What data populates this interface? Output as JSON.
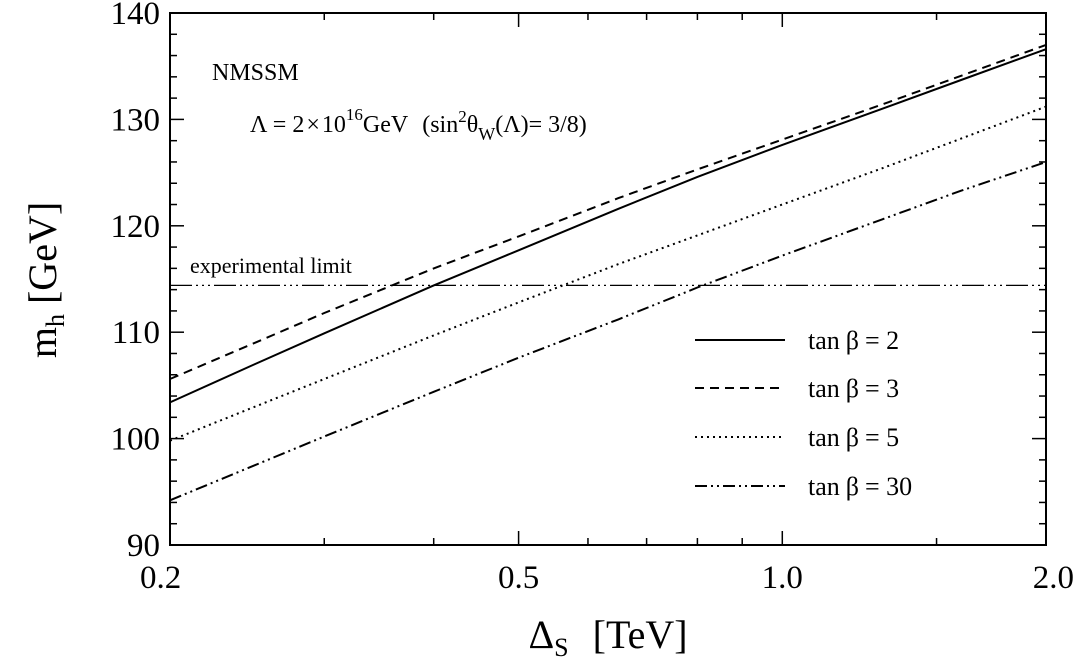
{
  "chart_data": {
    "type": "line",
    "xscale": "log",
    "xlim": [
      0.2,
      2.0
    ],
    "ylim": [
      90,
      140
    ],
    "xticks": [
      {
        "value": 0.2,
        "label": "0.2"
      },
      {
        "value": 0.5,
        "label": "0.5"
      },
      {
        "value": 1.0,
        "label": "1.0"
      },
      {
        "value": 2.0,
        "label": "2.0"
      }
    ],
    "yticks": [
      {
        "value": 90,
        "label": "90"
      },
      {
        "value": 100,
        "label": "100"
      },
      {
        "value": 110,
        "label": "110"
      },
      {
        "value": 120,
        "label": "120"
      },
      {
        "value": 130,
        "label": "130"
      },
      {
        "value": 140,
        "label": "140"
      }
    ],
    "xlabel": {
      "main": "Δ",
      "sub": "S",
      "unit": "[TeV]"
    },
    "ylabel": {
      "main": "m",
      "sub": "h",
      "unit": "[GeV]"
    },
    "annotations": {
      "model": "NMSSM",
      "cutoff": {
        "lambda": "Λ = 2",
        "times": "×",
        "ten": "10",
        "exponent": "16",
        "unit": "GeV",
        "paren_open": "(sin",
        "sq": "2",
        "theta": "θ",
        "theta_sub": "W",
        "paren_close": "(Λ)= 3/8)"
      }
    },
    "reference_line": {
      "y": 114.4,
      "label": "experimental limit",
      "style": "dash-dot-dot"
    },
    "legend_position": "right",
    "series": [
      {
        "name": "tan β = 2",
        "prefix": "tan",
        "symbol": "β",
        "value_text": "= 2",
        "style": "solid",
        "x": [
          0.2,
          0.25,
          0.3,
          0.4,
          0.5,
          0.65,
          0.8,
          1.0,
          1.3,
          1.6,
          2.0
        ],
        "y": [
          103.4,
          107.0,
          109.9,
          114.4,
          117.7,
          121.6,
          124.6,
          127.6,
          131.0,
          133.7,
          136.6
        ]
      },
      {
        "name": "tan β = 3",
        "prefix": "tan",
        "symbol": "β",
        "value_text": "= 3",
        "style": "dashed",
        "x": [
          0.2,
          0.25,
          0.3,
          0.4,
          0.5,
          0.65,
          0.8,
          1.0,
          1.3,
          1.6,
          2.0
        ],
        "y": [
          105.6,
          109.0,
          111.8,
          116.0,
          119.0,
          122.6,
          125.3,
          128.1,
          131.4,
          134.1,
          137.0
        ]
      },
      {
        "name": "tan β = 5",
        "prefix": "tan",
        "symbol": "β",
        "value_text": "= 5",
        "style": "dotted",
        "x": [
          0.2,
          0.25,
          0.3,
          0.4,
          0.5,
          0.65,
          0.8,
          1.0,
          1.3,
          1.6,
          2.0
        ],
        "y": [
          99.8,
          103.0,
          105.6,
          109.7,
          112.8,
          116.4,
          119.1,
          122.0,
          125.4,
          128.2,
          131.2
        ]
      },
      {
        "name": "tan β = 30",
        "prefix": "tan",
        "symbol": "β",
        "value_text": "= 30",
        "style": "dash-dot",
        "x": [
          0.2,
          0.25,
          0.3,
          0.4,
          0.5,
          0.65,
          0.8,
          1.0,
          1.3,
          1.6,
          2.0
        ],
        "y": [
          94.2,
          97.5,
          100.2,
          104.4,
          107.6,
          111.2,
          114.2,
          117.2,
          120.6,
          123.3,
          126.0
        ]
      }
    ]
  }
}
